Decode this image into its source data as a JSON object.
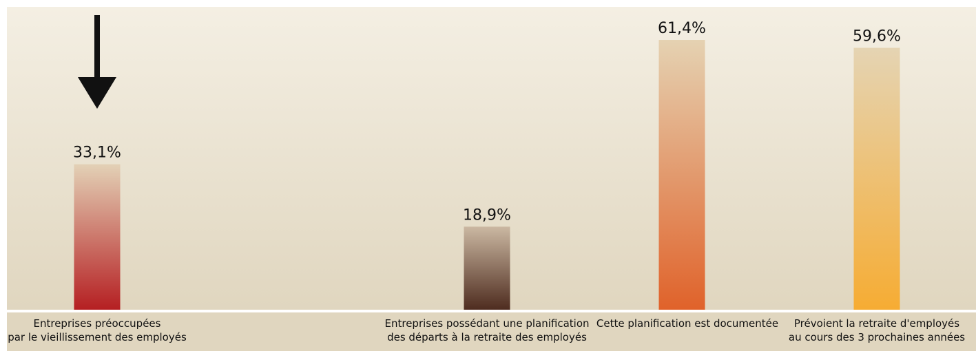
{
  "chart_data": {
    "type": "bar",
    "categories": [
      [
        "Entreprises préoccupées",
        "par le vieillissement des employés"
      ],
      [
        "Entreprises possédant une planification",
        "des départs à la retraite des employés"
      ],
      [
        "Cette planification est documentée"
      ],
      [
        "Prévoient la retraite d'employés",
        "au cours des 3 prochaines années"
      ]
    ],
    "values": [
      33.1,
      18.9,
      61.4,
      59.6
    ],
    "value_labels": [
      "33,1%",
      "18,9%",
      "61,4%",
      "59,6%"
    ],
    "ylim": [
      0,
      65
    ],
    "grid": false,
    "annotations": [
      {
        "type": "arrow",
        "direction": "down",
        "target_category_index": 0
      }
    ],
    "colors": {
      "background_top": "#f4efe3",
      "background_bottom": "#e0d6bf",
      "baseline": "#ffffff",
      "bars": [
        {
          "top": "#e3d1b6",
          "bottom": "#b51f22"
        },
        {
          "top": "#cbb8a2",
          "bottom": "#4e2c1f"
        },
        {
          "top": "#e5d2b2",
          "bottom": "#e0622a"
        },
        {
          "top": "#e5d4b3",
          "bottom": "#f6ac33"
        }
      ],
      "arrow": "#111111"
    }
  }
}
